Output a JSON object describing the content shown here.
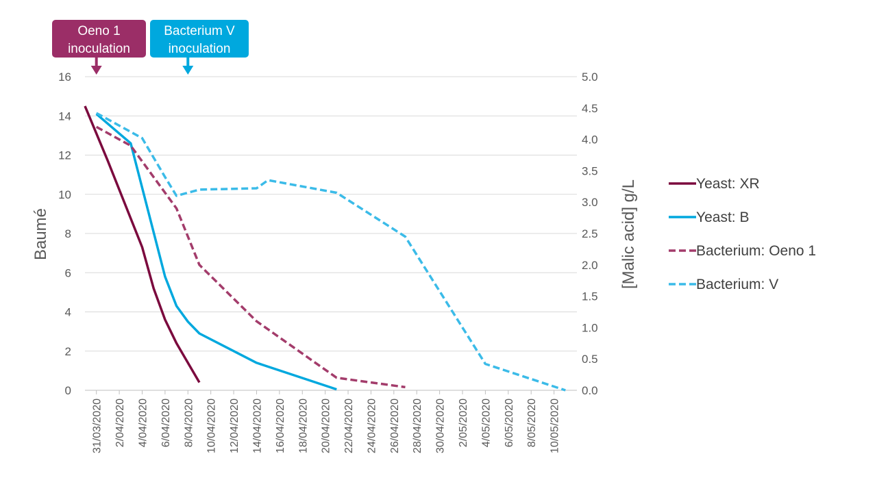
{
  "chart_data": {
    "type": "line",
    "xlabel": "",
    "ylabel": "Baumé",
    "y2label": "[Malic acid] g/L",
    "ylim": [
      0,
      16
    ],
    "y2lim": [
      0,
      5
    ],
    "yticks": [
      "0",
      "2",
      "4",
      "6",
      "8",
      "10",
      "12",
      "14",
      "16"
    ],
    "y2ticks": [
      "0.0",
      "0.5",
      "1.0",
      "1.5",
      "2.0",
      "2.5",
      "3.0",
      "3.5",
      "4.0",
      "4.5",
      "5.0"
    ],
    "x_dates": [
      "2020-03-30",
      "2020-05-12"
    ],
    "xticks": [
      {
        "date": "2020-03-31",
        "label": "31/03/2020"
      },
      {
        "date": "2020-04-02",
        "label": "2/04/2020"
      },
      {
        "date": "2020-04-04",
        "label": "4/04/2020"
      },
      {
        "date": "2020-04-06",
        "label": "6/04/2020"
      },
      {
        "date": "2020-04-08",
        "label": "8/04/2020"
      },
      {
        "date": "2020-04-10",
        "label": "10/04/2020"
      },
      {
        "date": "2020-04-12",
        "label": "12/04/2020"
      },
      {
        "date": "2020-04-14",
        "label": "14/04/2020"
      },
      {
        "date": "2020-04-16",
        "label": "16/04/2020"
      },
      {
        "date": "2020-04-18",
        "label": "18/04/2020"
      },
      {
        "date": "2020-04-20",
        "label": "20/04/2020"
      },
      {
        "date": "2020-04-22",
        "label": "22/04/2020"
      },
      {
        "date": "2020-04-24",
        "label": "24/04/2020"
      },
      {
        "date": "2020-04-26",
        "label": "26/04/2020"
      },
      {
        "date": "2020-04-28",
        "label": "28/04/2020"
      },
      {
        "date": "2020-04-30",
        "label": "30/04/2020"
      },
      {
        "date": "2020-05-02",
        "label": "2/05/2020"
      },
      {
        "date": "2020-05-04",
        "label": "4/05/2020"
      },
      {
        "date": "2020-05-06",
        "label": "6/05/2020"
      },
      {
        "date": "2020-05-08",
        "label": "8/05/2020"
      },
      {
        "date": "2020-05-10",
        "label": "10/05/2020"
      }
    ],
    "grid": true,
    "legend_position": "right",
    "series": [
      {
        "name": "Yeast: XR",
        "axis": "left",
        "color": "#7b0a3e",
        "dash": "solid",
        "points": [
          [
            "2020-03-30",
            14.5
          ],
          [
            "2020-04-01",
            11.7
          ],
          [
            "2020-04-04",
            7.3
          ],
          [
            "2020-04-05",
            5.2
          ],
          [
            "2020-04-06",
            3.6
          ],
          [
            "2020-04-07",
            2.4
          ],
          [
            "2020-04-09",
            0.4
          ]
        ]
      },
      {
        "name": "Yeast: B",
        "axis": "left",
        "color": "#00a8de",
        "dash": "solid",
        "points": [
          [
            "2020-03-31",
            14.1
          ],
          [
            "2020-04-03",
            12.6
          ],
          [
            "2020-04-06",
            5.8
          ],
          [
            "2020-04-07",
            4.3
          ],
          [
            "2020-04-08",
            3.5
          ],
          [
            "2020-04-09",
            2.9
          ],
          [
            "2020-04-14",
            1.4
          ],
          [
            "2020-04-21",
            0.05
          ]
        ]
      },
      {
        "name": "Bacterium: Oeno 1",
        "axis": "right",
        "color": "#a33c6b",
        "dash": "dashed",
        "points": [
          [
            "2020-03-31",
            4.2
          ],
          [
            "2020-04-03",
            3.9
          ],
          [
            "2020-04-07",
            2.9
          ],
          [
            "2020-04-09",
            2.0
          ],
          [
            "2020-04-14",
            1.1
          ],
          [
            "2020-04-21",
            0.2
          ],
          [
            "2020-04-27",
            0.05
          ]
        ]
      },
      {
        "name": "Bacterium: V",
        "axis": "right",
        "color": "#3bbbe8",
        "dash": "dashed",
        "points": [
          [
            "2020-03-31",
            4.42
          ],
          [
            "2020-04-04",
            4.02
          ],
          [
            "2020-04-06",
            3.4
          ],
          [
            "2020-04-07",
            3.1
          ],
          [
            "2020-04-09",
            3.2
          ],
          [
            "2020-04-14",
            3.22
          ],
          [
            "2020-04-15",
            3.35
          ],
          [
            "2020-04-21",
            3.15
          ],
          [
            "2020-04-27",
            2.45
          ],
          [
            "2020-05-04",
            0.42
          ],
          [
            "2020-05-11",
            0.0
          ]
        ]
      }
    ],
    "annotations": [
      {
        "lines": [
          "Oeno 1",
          "inoculation"
        ],
        "color": "#9b2e67",
        "arrow_date": "2020-03-31"
      },
      {
        "lines": [
          "Bacterium V",
          "inoculation"
        ],
        "color": "#00a8de",
        "arrow_date": "2020-04-08"
      }
    ]
  }
}
